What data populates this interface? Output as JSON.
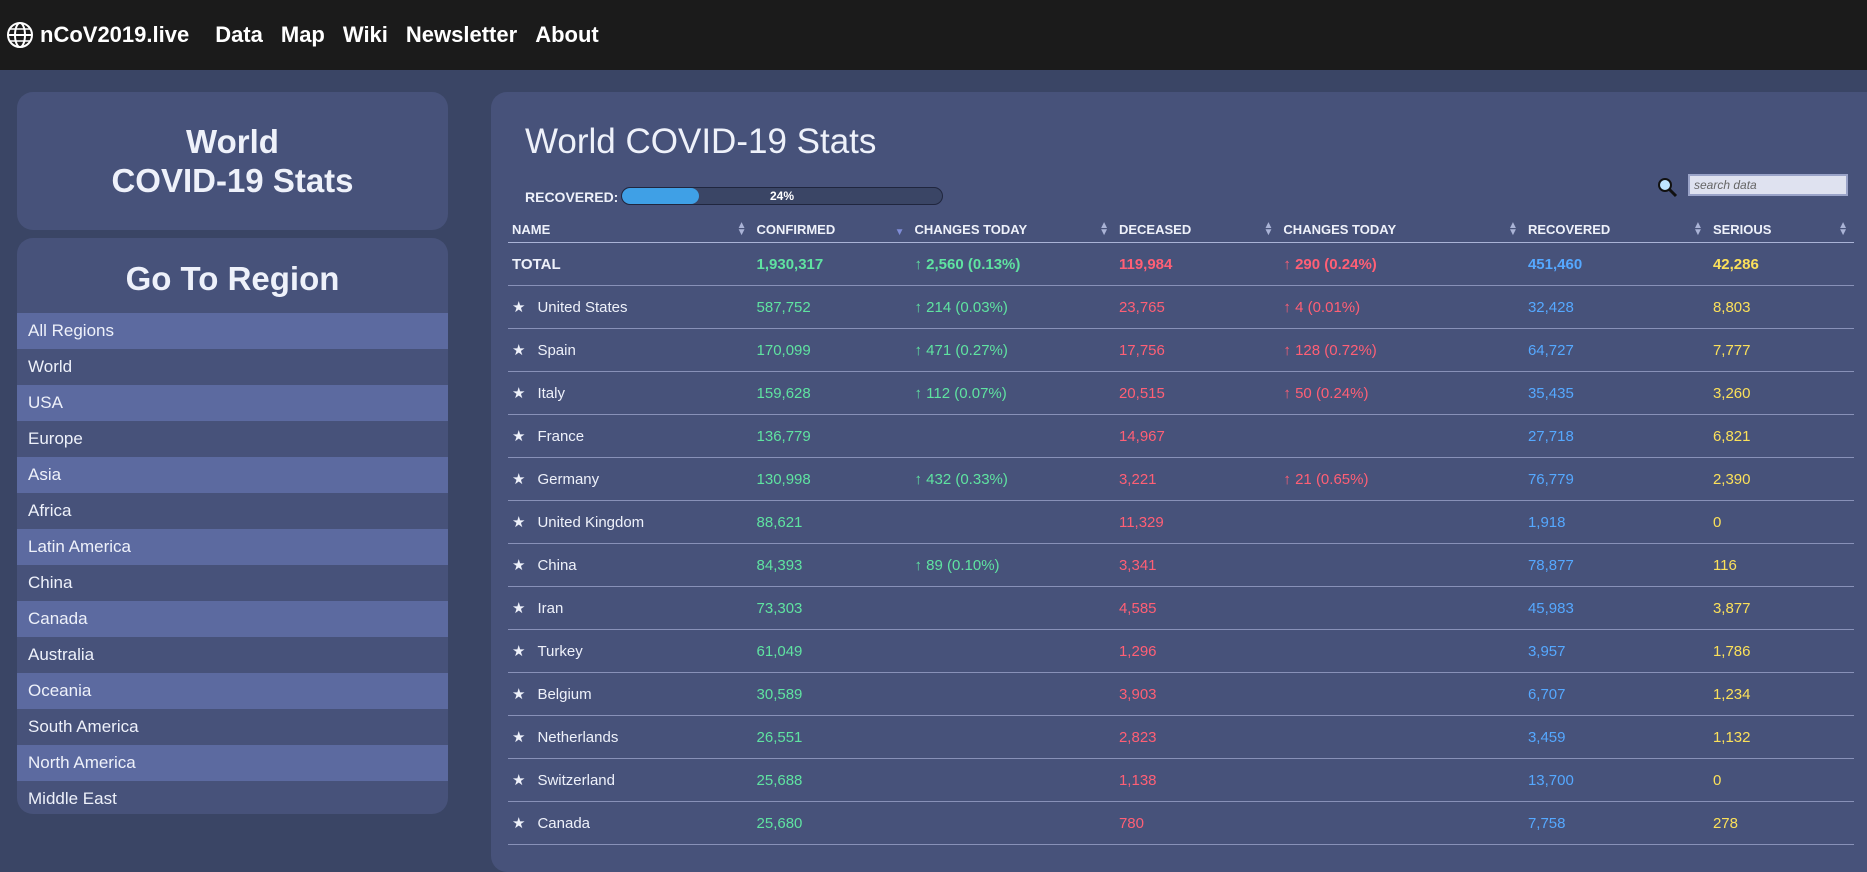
{
  "brand": "nCoV2019.live",
  "nav": [
    "Data",
    "Map",
    "Wiki",
    "Newsletter",
    "About"
  ],
  "left_title": [
    "World",
    "COVID-19 Stats"
  ],
  "region_panel": {
    "heading": "Go To Region",
    "items": [
      "All Regions",
      "World",
      "USA",
      "Europe",
      "Asia",
      "Africa",
      "Latin America",
      "China",
      "Canada",
      "Australia",
      "Oceania",
      "South America",
      "North America",
      "Middle East"
    ]
  },
  "main": {
    "title": "World COVID-19 Stats",
    "recovered_label": "RECOVERED:",
    "recovered_pct_text": "24%",
    "recovered_fraction": 0.24,
    "search_placeholder": "search data"
  },
  "table": {
    "headers": [
      "NAME",
      "CONFIRMED",
      "CHANGES TODAY",
      "DECEASED",
      "CHANGES TODAY",
      "RECOVERED",
      "SERIOUS"
    ],
    "total": [
      "TOTAL",
      "1,930,317",
      "↑ 2,560 (0.13%)",
      "119,984",
      "↑ 290 (0.24%)",
      "451,460",
      "42,286"
    ],
    "rows": [
      [
        "United States",
        "587,752",
        "↑ 214 (0.03%)",
        "23,765",
        "↑ 4 (0.01%)",
        "32,428",
        "8,803"
      ],
      [
        "Spain",
        "170,099",
        "↑ 471 (0.27%)",
        "17,756",
        "↑ 128 (0.72%)",
        "64,727",
        "7,777"
      ],
      [
        "Italy",
        "159,628",
        "↑ 112 (0.07%)",
        "20,515",
        "↑ 50 (0.24%)",
        "35,435",
        "3,260"
      ],
      [
        "France",
        "136,779",
        "",
        "14,967",
        "",
        "27,718",
        "6,821"
      ],
      [
        "Germany",
        "130,998",
        "↑ 432 (0.33%)",
        "3,221",
        "↑ 21 (0.65%)",
        "76,779",
        "2,390"
      ],
      [
        "United Kingdom",
        "88,621",
        "",
        "11,329",
        "",
        "1,918",
        "0"
      ],
      [
        "China",
        "84,393",
        "↑ 89 (0.10%)",
        "3,341",
        "",
        "78,877",
        "116"
      ],
      [
        "Iran",
        "73,303",
        "",
        "4,585",
        "",
        "45,983",
        "3,877"
      ],
      [
        "Turkey",
        "61,049",
        "",
        "1,296",
        "",
        "3,957",
        "1,786"
      ],
      [
        "Belgium",
        "30,589",
        "",
        "3,903",
        "",
        "6,707",
        "1,234"
      ],
      [
        "Netherlands",
        "26,551",
        "",
        "2,823",
        "",
        "3,459",
        "1,132"
      ],
      [
        "Switzerland",
        "25,688",
        "",
        "1,138",
        "",
        "13,700",
        "0"
      ],
      [
        "Canada",
        "25,680",
        "",
        "780",
        "",
        "7,758",
        "278"
      ]
    ]
  },
  "colors": {
    "confirmed": "#5fe3a1",
    "deceased": "#ff5f75",
    "recovered": "#55a8ff",
    "serious": "#fbe05a",
    "progress": "#3fa0e6"
  }
}
